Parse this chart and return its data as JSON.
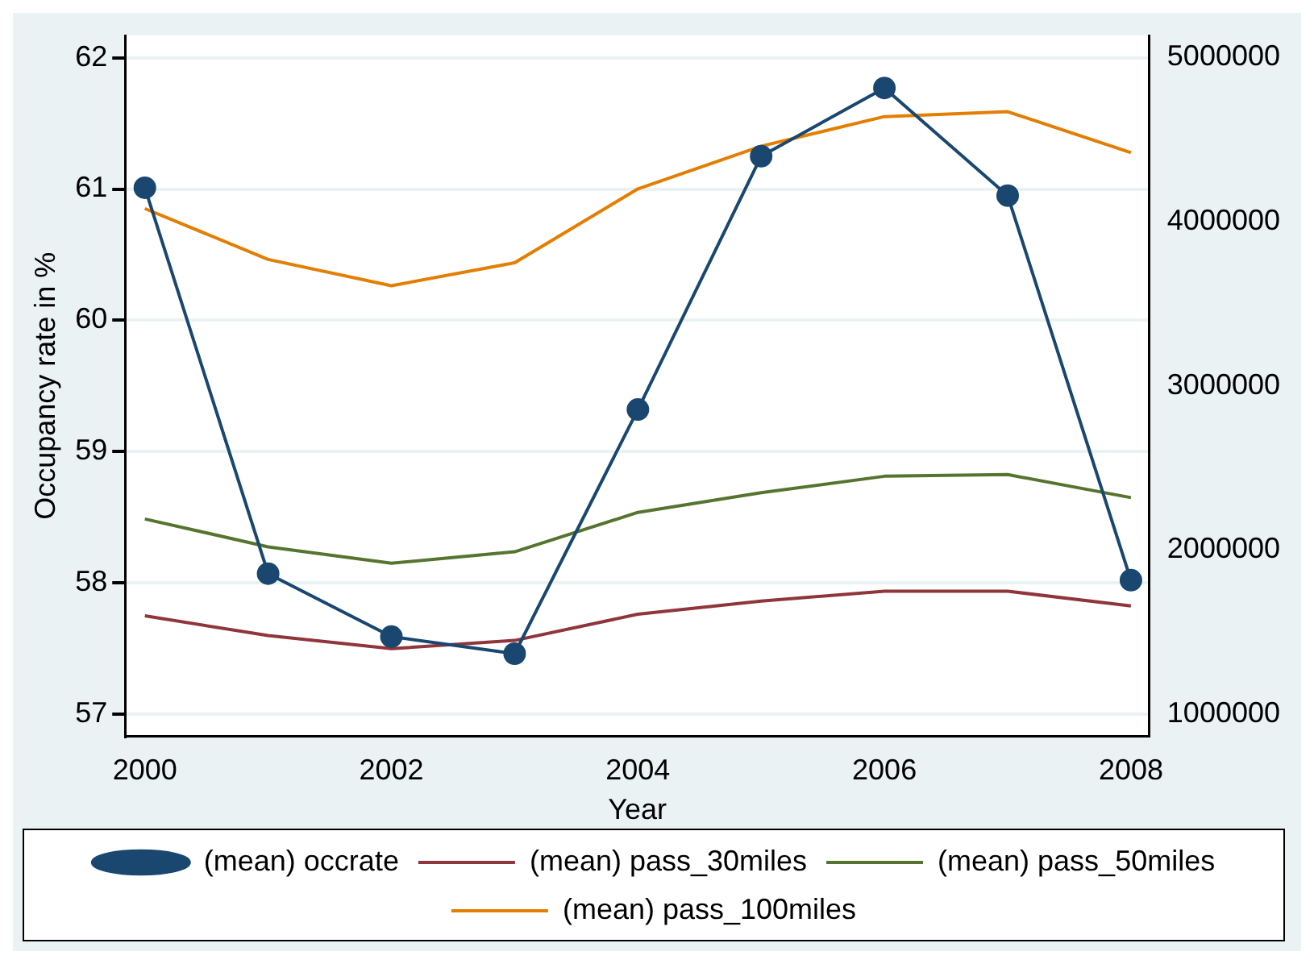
{
  "chart_data": {
    "type": "line",
    "xlabel": "Year",
    "ylabel": "Occupancy rate in %",
    "x": [
      2000,
      2001,
      2002,
      2003,
      2004,
      2005,
      2006,
      2007,
      2008
    ],
    "xlim": [
      1999.84,
      2008.15
    ],
    "xticks": [
      2000,
      2002,
      2004,
      2006,
      2008
    ],
    "ylim": [
      56.83,
      62.17
    ],
    "yticks": [
      57,
      58,
      59,
      60,
      61,
      62
    ],
    "y2lim": [
      866000,
      5134000
    ],
    "y2ticks": [
      1000000,
      2000000,
      3000000,
      4000000,
      5000000
    ],
    "grid": "y",
    "legend": "bottom",
    "line_style": "solid",
    "series": [
      {
        "name": "(mean) occrate",
        "color": "#1a476f",
        "marker": "circle",
        "values": [
          61.01,
          58.07,
          57.59,
          57.46,
          59.32,
          61.25,
          61.77,
          60.95,
          58.02
        ]
      },
      {
        "name": "(mean) pass_30miles",
        "color": "#90353b",
        "marker": "none",
        "axis": "y2",
        "values": [
          1600000,
          1480000,
          1400000,
          1450000,
          1610000,
          1690000,
          1750000,
          1750000,
          1660000
        ]
      },
      {
        "name": "(mean) pass_50miles",
        "color": "#55752f",
        "marker": "none",
        "axis": "y2",
        "values": [
          2190000,
          2020000,
          1920000,
          1990000,
          2230000,
          2350000,
          2450000,
          2460000,
          2320000
        ]
      },
      {
        "name": "(mean) pass_100miles",
        "color": "#e37e00",
        "marker": "none",
        "axis": "y2",
        "values": [
          4080000,
          3770000,
          3610000,
          3750000,
          4200000,
          4460000,
          4640000,
          4670000,
          4420000
        ]
      }
    ]
  }
}
